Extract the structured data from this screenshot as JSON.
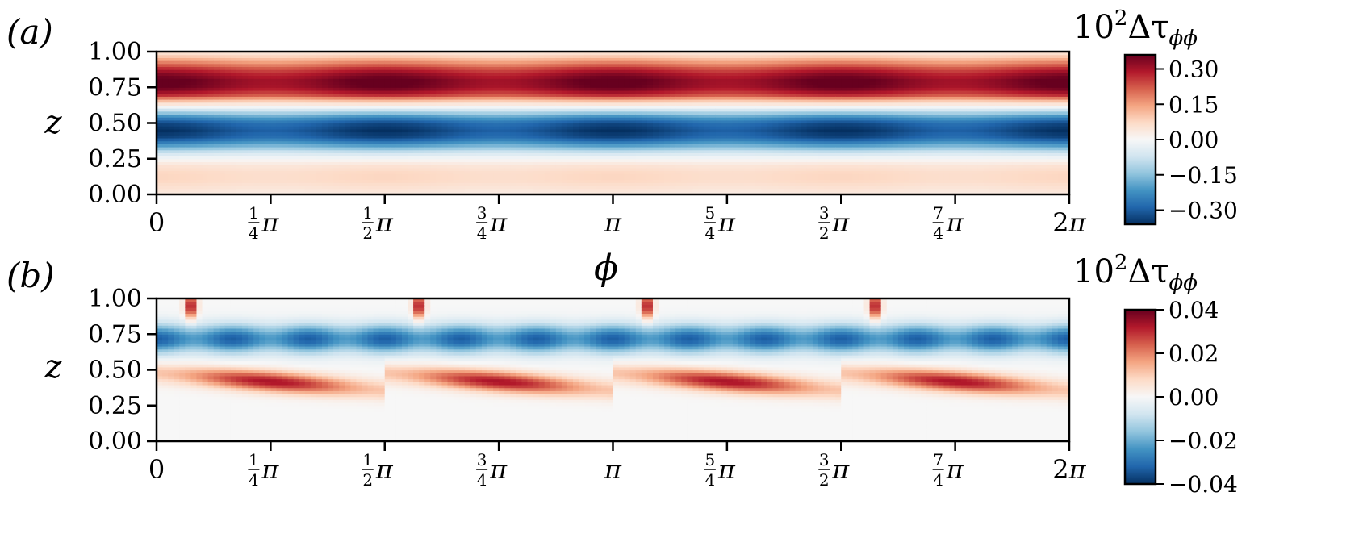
{
  "chart_data": [
    {
      "panel_label": "(a)",
      "type": "heatmap",
      "xlabel": "ϕ",
      "ylabel": "z",
      "xlim": [
        0,
        6.2832
      ],
      "ylim": [
        0,
        1
      ],
      "yticks": [
        {
          "value": 0.0,
          "label": "0.00"
        },
        {
          "value": 0.25,
          "label": "0.25"
        },
        {
          "value": 0.5,
          "label": "0.50"
        },
        {
          "value": 0.75,
          "label": "0.75"
        },
        {
          "value": 1.0,
          "label": "1.00"
        }
      ],
      "xticks": [
        {
          "value": 0.0,
          "int": "0"
        },
        {
          "value": 0.7854,
          "num": "1",
          "den": "4",
          "sym": "π"
        },
        {
          "value": 1.5708,
          "num": "1",
          "den": "2",
          "sym": "π"
        },
        {
          "value": 2.3562,
          "num": "3",
          "den": "4",
          "sym": "π"
        },
        {
          "value": 3.1416,
          "sym": "π"
        },
        {
          "value": 3.927,
          "num": "5",
          "den": "4",
          "sym": "π"
        },
        {
          "value": 4.7124,
          "num": "3",
          "den": "2",
          "sym": "π"
        },
        {
          "value": 5.4978,
          "num": "7",
          "den": "4",
          "sym": "π"
        },
        {
          "value": 6.2832,
          "int": "2",
          "sym": "π"
        }
      ],
      "colorbar": {
        "label_base": "10",
        "label_exp": "2",
        "label_main": "Δτ",
        "label_sub": "ϕϕ",
        "range": [
          -0.36,
          0.36
        ],
        "ticks": [
          {
            "value": 0.3,
            "label": "0.30"
          },
          {
            "value": 0.15,
            "label": "0.15"
          },
          {
            "value": 0.0,
            "label": "0.00"
          },
          {
            "value": -0.15,
            "label": "−0.15"
          },
          {
            "value": -0.3,
            "label": "−0.30"
          }
        ]
      },
      "field": {
        "z": [
          0.0,
          0.05,
          0.1,
          0.15,
          0.2,
          0.25,
          0.3,
          0.35,
          0.4,
          0.45,
          0.5,
          0.55,
          0.6,
          0.65,
          0.7,
          0.75,
          0.8,
          0.85,
          0.9,
          0.95,
          1.0
        ],
        "values": [
          0.03,
          0.05,
          0.07,
          0.07,
          0.05,
          0.0,
          -0.08,
          -0.2,
          -0.3,
          -0.33,
          -0.3,
          -0.2,
          -0.05,
          0.08,
          0.25,
          0.33,
          0.34,
          0.3,
          0.22,
          0.12,
          0.04
        ],
        "modulation": {
          "periods": 4,
          "amplitude": 0.1
        }
      }
    },
    {
      "panel_label": "(b)",
      "type": "heatmap",
      "xlabel": "",
      "ylabel": "z",
      "xlim": [
        0,
        6.2832
      ],
      "ylim": [
        0,
        1
      ],
      "yticks": [
        {
          "value": 0.0,
          "label": "0.00"
        },
        {
          "value": 0.25,
          "label": "0.25"
        },
        {
          "value": 0.5,
          "label": "0.50"
        },
        {
          "value": 0.75,
          "label": "0.75"
        },
        {
          "value": 1.0,
          "label": "1.00"
        }
      ],
      "xticks": [
        {
          "value": 0.0,
          "int": "0"
        },
        {
          "value": 0.7854,
          "num": "1",
          "den": "4",
          "sym": "π"
        },
        {
          "value": 1.5708,
          "num": "1",
          "den": "2",
          "sym": "π"
        },
        {
          "value": 2.3562,
          "num": "3",
          "den": "4",
          "sym": "π"
        },
        {
          "value": 3.1416,
          "sym": "π"
        },
        {
          "value": 3.927,
          "num": "5",
          "den": "4",
          "sym": "π"
        },
        {
          "value": 4.7124,
          "num": "3",
          "den": "2",
          "sym": "π"
        },
        {
          "value": 5.4978,
          "num": "7",
          "den": "4",
          "sym": "π"
        },
        {
          "value": 6.2832,
          "int": "2",
          "sym": "π"
        }
      ],
      "colorbar": {
        "label_base": "10",
        "label_exp": "2",
        "label_main": "Δτ",
        "label_sub": "ϕϕ",
        "range": [
          -0.04,
          0.04
        ],
        "ticks": [
          {
            "value": 0.04,
            "label": "0.04"
          },
          {
            "value": 0.02,
            "label": "0.02"
          },
          {
            "value": 0.0,
            "label": "0.00"
          },
          {
            "value": -0.02,
            "label": "−0.02"
          },
          {
            "value": -0.04,
            "label": "−0.04"
          }
        ]
      },
      "structure": {
        "periods": 4,
        "negative_band": {
          "z_center": 0.72,
          "width": 0.1,
          "amplitude": -0.028
        },
        "positive_band": {
          "z_center": 0.42,
          "width": 0.07,
          "amplitude": 0.033,
          "z_shift_per_period": 0.12
        },
        "positive_spots": {
          "phase": 0.15,
          "z": 0.95,
          "amplitude": 0.012
        }
      }
    }
  ]
}
